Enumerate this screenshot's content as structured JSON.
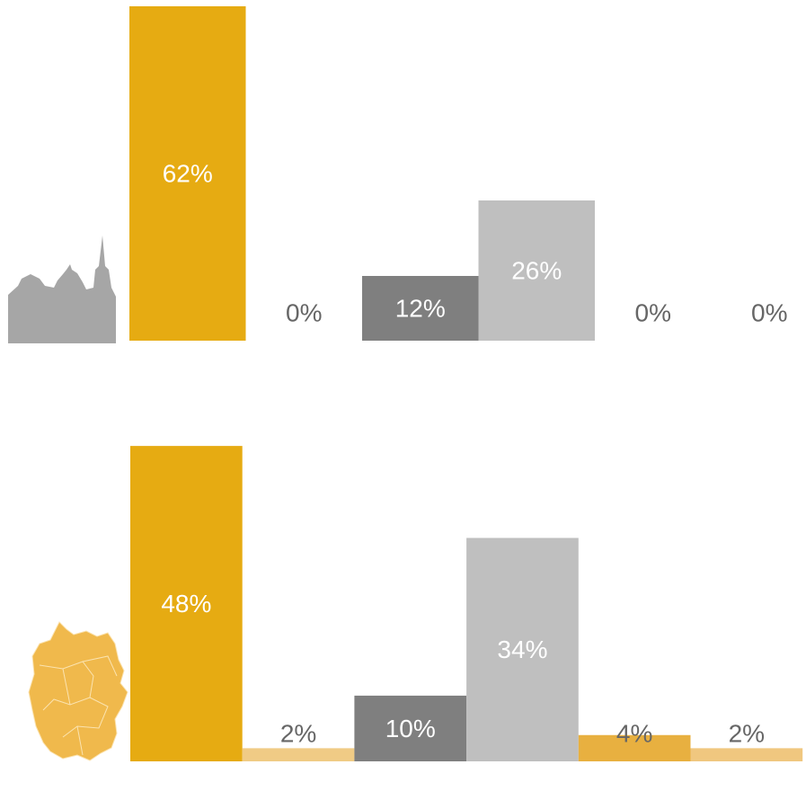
{
  "chart_data": [
    {
      "type": "bar",
      "categories": [
        null,
        null,
        null,
        null,
        null,
        null
      ],
      "values": [
        62,
        0,
        12,
        26,
        0,
        0
      ],
      "value_labels": [
        "62%",
        "0%",
        "12%",
        "26%",
        "0%",
        "0%"
      ],
      "colors": [
        "#e6ab12",
        "#f0cb85",
        "#7f7f7f",
        "#bfbfbf",
        "#e8b040",
        "#f0c77f"
      ]
    },
    {
      "type": "bar",
      "categories": [
        null,
        null,
        null,
        null,
        null,
        null
      ],
      "values": [
        48,
        2,
        10,
        34,
        4,
        2
      ],
      "value_labels": [
        "48%",
        "2%",
        "10%",
        "34%",
        "4%",
        "2%"
      ],
      "colors": [
        "#e6ab12",
        "#f0cb85",
        "#7f7f7f",
        "#bfbfbf",
        "#e8b040",
        "#f0c77f"
      ]
    }
  ]
}
